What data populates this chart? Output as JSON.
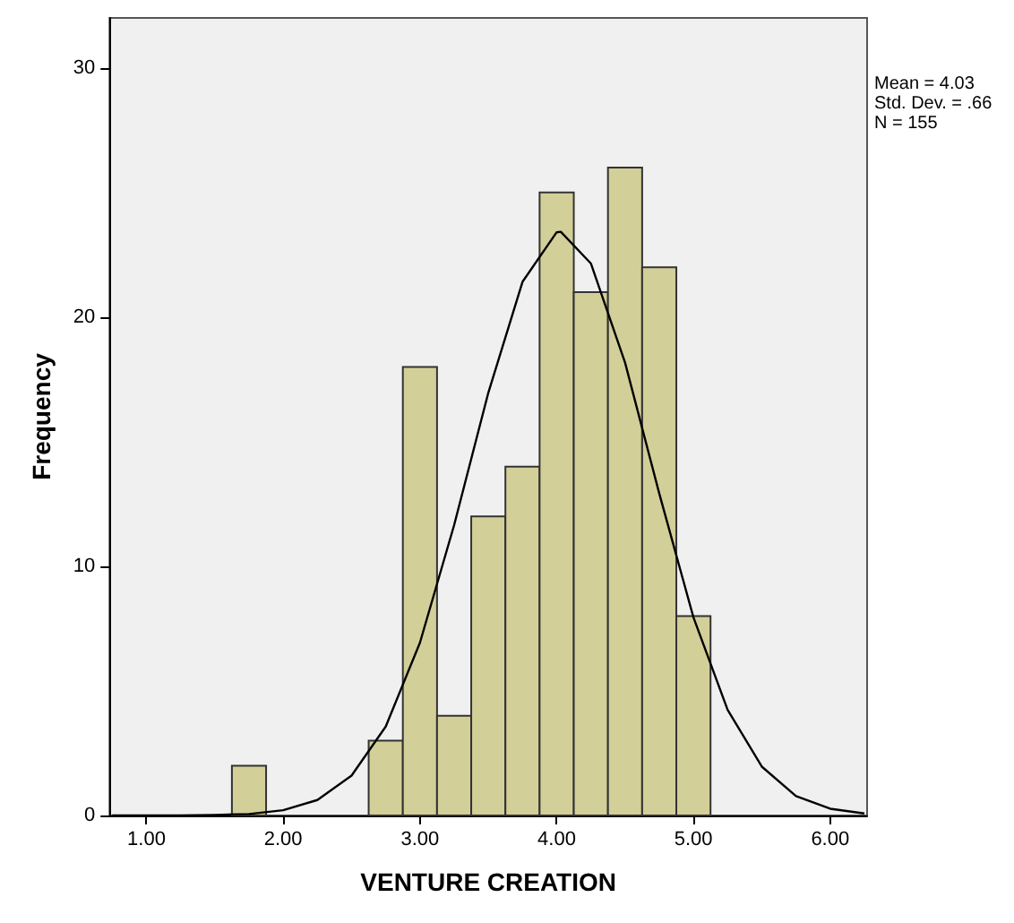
{
  "chart_data": {
    "type": "histogram",
    "xlabel": "VENTURE CREATION",
    "ylabel": "Frequency",
    "bins": [
      1.625,
      1.875,
      2.125,
      2.375,
      2.625,
      2.875,
      3.125,
      3.375,
      3.625,
      3.875,
      4.125,
      4.375,
      4.625,
      4.875,
      5.125
    ],
    "values": [
      2,
      0,
      0,
      0,
      3,
      18,
      4,
      12,
      14,
      25,
      21,
      26,
      22,
      8
    ],
    "color": "#d3cf99",
    "series": [
      {
        "type": "line",
        "color": "#000000",
        "x": [
          0.75,
          1.0,
          1.25,
          1.5,
          1.75,
          2.0,
          2.25,
          2.5,
          2.75,
          3.0,
          3.25,
          3.5,
          3.75,
          4.0,
          4.03,
          4.25,
          4.5,
          4.75,
          5.0,
          5.25,
          5.5,
          5.75,
          6.0,
          6.25
        ],
        "values": [
          0,
          0,
          0,
          0.02,
          0.06,
          0.21,
          0.62,
          1.6,
          3.57,
          6.93,
          11.65,
          16.96,
          21.41,
          23.4,
          23.42,
          22.15,
          18.17,
          12.92,
          7.95,
          4.24,
          1.96,
          0.78,
          0.27,
          0.08
        ]
      }
    ],
    "xlim": [
      0.73,
      6.27
    ],
    "ylim": [
      0,
      32
    ],
    "xticks": [
      {
        "value": 1,
        "label": "1.00"
      },
      {
        "value": 2,
        "label": "2.00"
      },
      {
        "value": 3,
        "label": "3.00"
      },
      {
        "value": 4,
        "label": "4.00"
      },
      {
        "value": 5,
        "label": "5.00"
      },
      {
        "value": 6,
        "label": "6.00"
      }
    ],
    "yticks": [
      0,
      10,
      20,
      30
    ],
    "grid": false,
    "marker": "none",
    "line_style": "solid",
    "annotations": [
      "Mean = 4.03",
      "Std. Dev. = .66",
      "N = 155"
    ]
  }
}
